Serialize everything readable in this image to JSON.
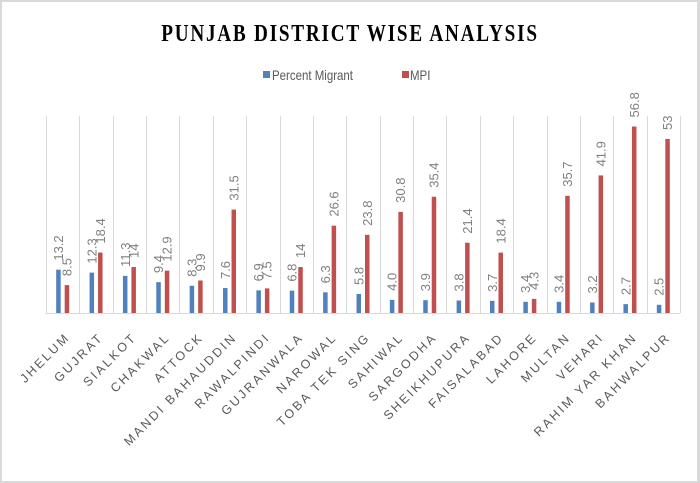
{
  "chart_data": {
    "type": "bar",
    "title": "PUNJAB DISTRICT WISE ANALYSIS",
    "xlabel": "",
    "ylabel": "",
    "ylim": [
      0,
      60
    ],
    "grid": "vertical category separators only",
    "legend_position": "top",
    "categories": [
      "JHELUM",
      "GUJRAT",
      "SIALKOT",
      "CHAKWAL",
      "ATTOCK",
      "MANDI BAHAUDDIN",
      "RAWALPINDI",
      "GUJRANWALA",
      "NAROWAL",
      "TOBA TEK SING",
      "SAHIWAL",
      "SARGODHA",
      "SHEIKHUPURA",
      "FAISALABAD",
      "LAHORE",
      "MULTAN",
      "VEHARI",
      "RAHIM YAR KHAN",
      "BAHWALPUR"
    ],
    "series": [
      {
        "name": "Percent Migrant",
        "color": "#4f81bd",
        "values": [
          13.2,
          12.3,
          11.3,
          9.4,
          8.3,
          7.6,
          6.9,
          6.8,
          6.3,
          5.8,
          4.0,
          3.9,
          3.8,
          3.7,
          3.4,
          3.4,
          3.2,
          2.7,
          2.5
        ],
        "labels": [
          "13.2",
          "12.3",
          "11.3",
          "9.4",
          "8.3",
          "7.6",
          "6.9",
          "6.8",
          "6.3",
          "5.8",
          "4.0",
          "3.9",
          "3.8",
          "3.7",
          "3.4",
          "3.4",
          "3.2",
          "2.7",
          "2.5"
        ]
      },
      {
        "name": "MPI",
        "color": "#c0504d",
        "values": [
          8.5,
          18.4,
          14,
          12.9,
          9.9,
          31.5,
          7.5,
          14,
          26.6,
          23.8,
          30.8,
          35.4,
          21.4,
          18.4,
          4.3,
          35.7,
          41.9,
          56.8,
          53
        ],
        "labels": [
          "8.5",
          "18.4",
          "14",
          "12.9",
          "9.9",
          "31.5",
          "7.5",
          "14",
          "26.6",
          "23.8",
          "30.8",
          "35.4",
          "21.4",
          "18.4",
          "4.3",
          "35.7",
          "41.9",
          "56.8",
          "53"
        ]
      }
    ]
  },
  "legend": {
    "items": [
      {
        "label": "Percent Migrant",
        "color": "#4f81bd"
      },
      {
        "label": "MPI",
        "color": "#c0504d"
      }
    ]
  }
}
